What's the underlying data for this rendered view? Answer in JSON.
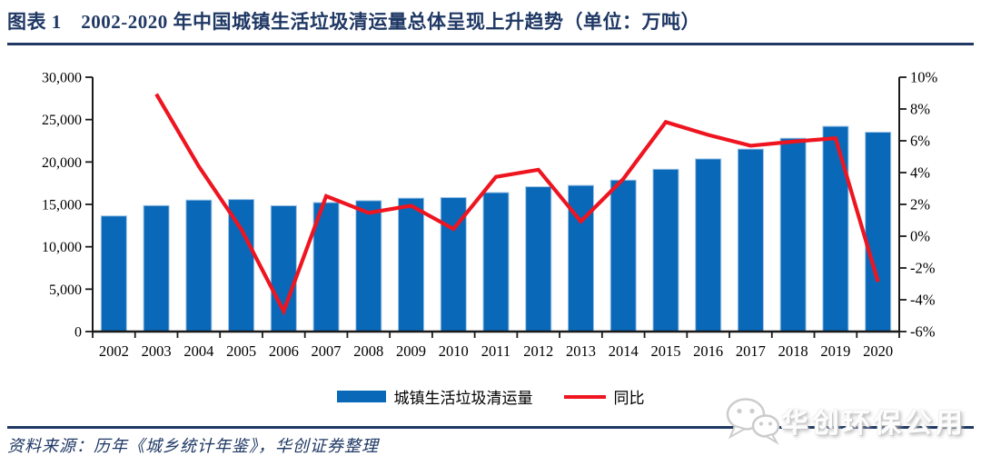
{
  "header": {
    "title": "图表 1　2002-2020 年中国城镇生活垃圾清运量总体呈现上升趋势（单位：万吨）"
  },
  "chart_data": {
    "type": "bar+line combo",
    "title": "2002-2020 年中国城镇生活垃圾清运量",
    "unit": "万吨",
    "categories": [
      "2002",
      "2003",
      "2004",
      "2005",
      "2006",
      "2007",
      "2008",
      "2009",
      "2010",
      "2011",
      "2012",
      "2013",
      "2014",
      "2015",
      "2016",
      "2017",
      "2018",
      "2019",
      "2020"
    ],
    "series": [
      {
        "name": "城镇生活垃圾清运量",
        "type": "bar",
        "axis": "left",
        "color": "#0a68b8",
        "values": [
          13638,
          14857,
          15509,
          15577,
          14841,
          15215,
          15438,
          15734,
          15805,
          16395,
          17081,
          17239,
          17860,
          19142,
          20362,
          21521,
          22802,
          24206,
          23512
        ]
      },
      {
        "name": "同比",
        "type": "line",
        "axis": "right",
        "color": "#ee1520",
        "values": [
          null,
          8.94,
          4.39,
          0.44,
          -4.72,
          2.52,
          1.47,
          1.92,
          0.45,
          3.73,
          4.18,
          0.93,
          3.6,
          7.18,
          6.37,
          5.69,
          5.95,
          6.16,
          -2.87
        ]
      }
    ],
    "left_axis": {
      "min": 0,
      "max": 30000,
      "tick_labels": [
        "0",
        "5,000",
        "10,000",
        "15,000",
        "20,000",
        "25,000",
        "30,000"
      ]
    },
    "right_axis": {
      "min": -6,
      "max": 10,
      "tick_labels": [
        "-6%",
        "-4%",
        "-2%",
        "0%",
        "2%",
        "4%",
        "6%",
        "8%",
        "10%"
      ]
    },
    "grid": false,
    "legend_position": "bottom"
  },
  "legend": {
    "bar_label": "城镇生活垃圾清运量",
    "line_label": "同比"
  },
  "footer": {
    "source": "资料来源：历年《城乡统计年鉴》，华创证券整理",
    "watermark": "华创环保公用"
  },
  "colors": {
    "accent_navy": "#1f3864",
    "bar_blue": "#0a68b8",
    "bar_border": "#9dc3e6",
    "line_red": "#ee1520",
    "axis_black": "#1a1a1a",
    "watermark_gray": "#c9c9c9"
  }
}
